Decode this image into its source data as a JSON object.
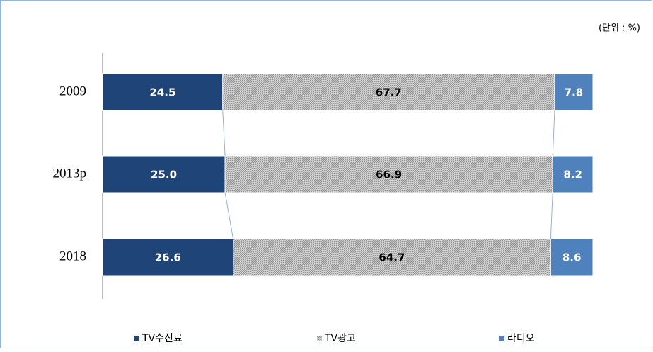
{
  "chart_data": {
    "type": "stacked-bar-horizontal",
    "unit_note": "(단위 : %)",
    "categories": [
      "2009",
      "2013p",
      "2018"
    ],
    "series": [
      {
        "name": "TV수신료",
        "color": "#1f4478",
        "values": [
          24.5,
          25.0,
          26.6
        ],
        "value_labels": [
          "24.5",
          "25.0",
          "26.6"
        ]
      },
      {
        "name": "TV광고",
        "color": "#a6a6a6",
        "values": [
          67.7,
          66.9,
          64.7
        ],
        "value_labels": [
          "67.7",
          "66.9",
          "64.7"
        ]
      },
      {
        "name": "라디오",
        "color": "#4f81bd",
        "values": [
          7.8,
          8.2,
          8.6
        ],
        "value_labels": [
          "7.8",
          "8.2",
          "8.6"
        ]
      }
    ],
    "legend": "bottom"
  }
}
